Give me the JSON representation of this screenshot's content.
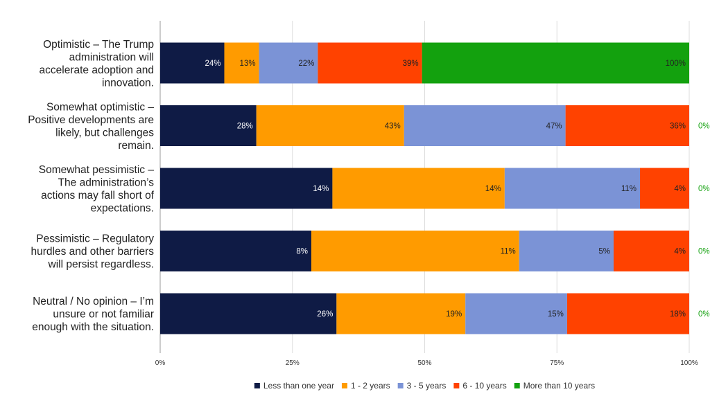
{
  "chart_data": {
    "type": "bar",
    "orientation": "horizontal",
    "stacking": "percent",
    "title": "",
    "xlabel": "",
    "ylabel": "",
    "xlim": [
      0,
      100
    ],
    "grid": true,
    "legend_position": "bottom",
    "categories": [
      "Optimistic – The Trump administration will accelerate adoption and innovation.",
      "Somewhat optimistic – Positive developments are likely, but challenges remain.",
      "Somewhat pessimistic – The administration’s actions may fall short of expectations.",
      "Pessimistic – Regulatory hurdles and other barriers will persist regardless.",
      "Neutral / No opinion – I’m unsure or not familiar enough with the situation."
    ],
    "category_lines": [
      [
        "Optimistic – The Trump",
        "administration will",
        "accelerate adoption and",
        "innovation."
      ],
      [
        "Somewhat optimistic –",
        "Positive developments are",
        "likely, but challenges",
        "remain."
      ],
      [
        "Somewhat pessimistic –",
        "The administration’s",
        "actions may fall short of",
        "expectations."
      ],
      [
        "Pessimistic – Regulatory",
        "hurdles and other barriers",
        "will persist regardless."
      ],
      [
        "Neutral / No opinion – I’m",
        "unsure or not familiar",
        "enough with the situation."
      ]
    ],
    "series": [
      {
        "name": "Less than one year",
        "color": "#0f1b45",
        "label_color": "#ffffff",
        "values": [
          24,
          28,
          14,
          8,
          26
        ]
      },
      {
        "name": "1 - 2 years",
        "color": "#ff9b00",
        "label_color": "#222222",
        "values": [
          13,
          43,
          14,
          11,
          19
        ]
      },
      {
        "name": "3 - 5 years",
        "color": "#7b93d6",
        "label_color": "#222222",
        "values": [
          22,
          47,
          11,
          5,
          15
        ]
      },
      {
        "name": "6 - 10 years",
        "color": "#ff4200",
        "label_color": "#222222",
        "values": [
          39,
          36,
          4,
          4,
          18
        ]
      },
      {
        "name": "More than 10 years",
        "color": "#13a10e",
        "label_color": "#222222",
        "values": [
          100,
          0,
          0,
          0,
          0
        ]
      }
    ],
    "segment_labels": [
      [
        "24%",
        "13%",
        "22%",
        "39%",
        "100%"
      ],
      [
        "28%",
        "43%",
        "47%",
        "36%",
        "0%"
      ],
      [
        "14%",
        "14%",
        "11%",
        "4%",
        "0%"
      ],
      [
        "8%",
        "11%",
        "5%",
        "4%",
        "0%"
      ],
      [
        "26%",
        "19%",
        "15%",
        "18%",
        "0%"
      ]
    ],
    "ticks": [
      0,
      25,
      50,
      75,
      100
    ],
    "tick_labels": [
      "0%",
      "25%",
      "50%",
      "75%",
      "100%"
    ],
    "colors": {
      "grid": "#dddddd",
      "axis": "#999999",
      "zero_label": "#13a10e"
    }
  }
}
